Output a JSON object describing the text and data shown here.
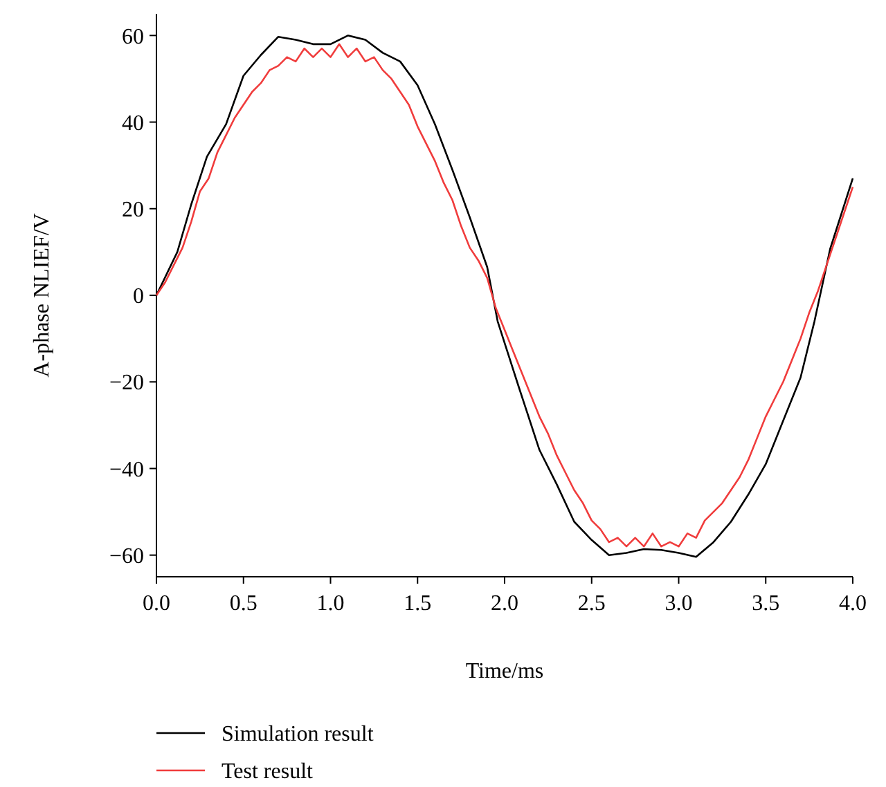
{
  "chart_data": {
    "type": "line",
    "xlabel": "Time/ms",
    "ylabel": "A-phase NLIEF/V",
    "xlim": [
      0,
      4
    ],
    "xticks": [
      {
        "value": 0,
        "label": "0.0"
      },
      {
        "value": 0.5,
        "label": "0.5"
      },
      {
        "value": 1,
        "label": "1.0"
      },
      {
        "value": 1.5,
        "label": "1.5"
      },
      {
        "value": 2,
        "label": "2.0"
      },
      {
        "value": 2.5,
        "label": "2.5"
      },
      {
        "value": 3,
        "label": "3.0"
      },
      {
        "value": 3.5,
        "label": "3.5"
      },
      {
        "value": 4,
        "label": "4.0"
      }
    ],
    "ylim": [
      -65,
      65
    ],
    "yticks": [
      {
        "value": -60,
        "label": "−60"
      },
      {
        "value": -40,
        "label": "−40"
      },
      {
        "value": -20,
        "label": "−20"
      },
      0,
      20,
      40,
      60
    ],
    "grid": false,
    "legend": "bottom",
    "marker": "none",
    "line_style": "solid",
    "series": [
      {
        "name": "Simulation result",
        "color": "#000000",
        "x": [
          0,
          0.12,
          0.2,
          0.29,
          0.4,
          0.5,
          0.6,
          0.7,
          0.8,
          0.9,
          1.0,
          1.1,
          1.2,
          1.3,
          1.4,
          1.5,
          1.6,
          1.7,
          1.8,
          1.9,
          1.96,
          2.08,
          2.2,
          2.3,
          2.4,
          2.5,
          2.6,
          2.7,
          2.8,
          2.9,
          3.0,
          3.1,
          3.2,
          3.3,
          3.4,
          3.5,
          3.6,
          3.7,
          3.78,
          3.87,
          4.0
        ],
        "values": [
          0,
          10,
          21,
          32,
          39.5,
          50.7,
          55.5,
          59.7,
          59,
          58,
          58,
          60,
          59,
          56,
          54,
          48.5,
          39.5,
          29,
          18,
          6.5,
          -6,
          -21,
          -35.7,
          -43.7,
          -52.3,
          -56.5,
          -60,
          -59.5,
          -58.6,
          -58.8,
          -59.5,
          -60.4,
          -57,
          -52.3,
          -46,
          -39,
          -29,
          -19,
          -6,
          10.7,
          27
        ]
      },
      {
        "name": "Test result",
        "color": "#f03c3c",
        "x": [
          0,
          0.05,
          0.1,
          0.15,
          0.2,
          0.25,
          0.3,
          0.35,
          0.4,
          0.45,
          0.5,
          0.55,
          0.6,
          0.65,
          0.7,
          0.75,
          0.8,
          0.85,
          0.9,
          0.95,
          1.0,
          1.05,
          1.1,
          1.15,
          1.2,
          1.25,
          1.3,
          1.35,
          1.4,
          1.45,
          1.5,
          1.55,
          1.6,
          1.65,
          1.7,
          1.75,
          1.8,
          1.85,
          1.9,
          1.95,
          2.0,
          2.05,
          2.1,
          2.15,
          2.2,
          2.25,
          2.3,
          2.35,
          2.4,
          2.45,
          2.5,
          2.55,
          2.6,
          2.65,
          2.7,
          2.75,
          2.8,
          2.85,
          2.9,
          2.95,
          3.0,
          3.05,
          3.1,
          3.15,
          3.2,
          3.25,
          3.3,
          3.35,
          3.4,
          3.45,
          3.5,
          3.55,
          3.6,
          3.65,
          3.7,
          3.75,
          3.8,
          3.85,
          3.9,
          3.95,
          4.0
        ],
        "values": [
          0,
          3,
          7,
          11,
          17,
          24,
          27,
          33,
          37,
          41,
          44,
          47,
          49,
          52,
          53,
          55,
          54,
          57,
          55,
          57,
          55,
          58,
          55,
          57,
          54,
          55,
          52,
          50,
          47,
          44,
          39,
          35,
          31,
          26,
          22,
          16,
          11,
          8,
          4,
          -3,
          -8,
          -13,
          -18,
          -23,
          -28,
          -32,
          -37,
          -41,
          -45,
          -48,
          -52,
          -54,
          -57,
          -56,
          -58,
          -56,
          -58,
          -55,
          -58,
          -57,
          -58,
          -55,
          -56,
          -52,
          -50,
          -48,
          -45,
          -42,
          -38,
          -33,
          -28,
          -24,
          -20,
          -15,
          -10,
          -4,
          1,
          7,
          13,
          19,
          25
        ]
      }
    ]
  }
}
